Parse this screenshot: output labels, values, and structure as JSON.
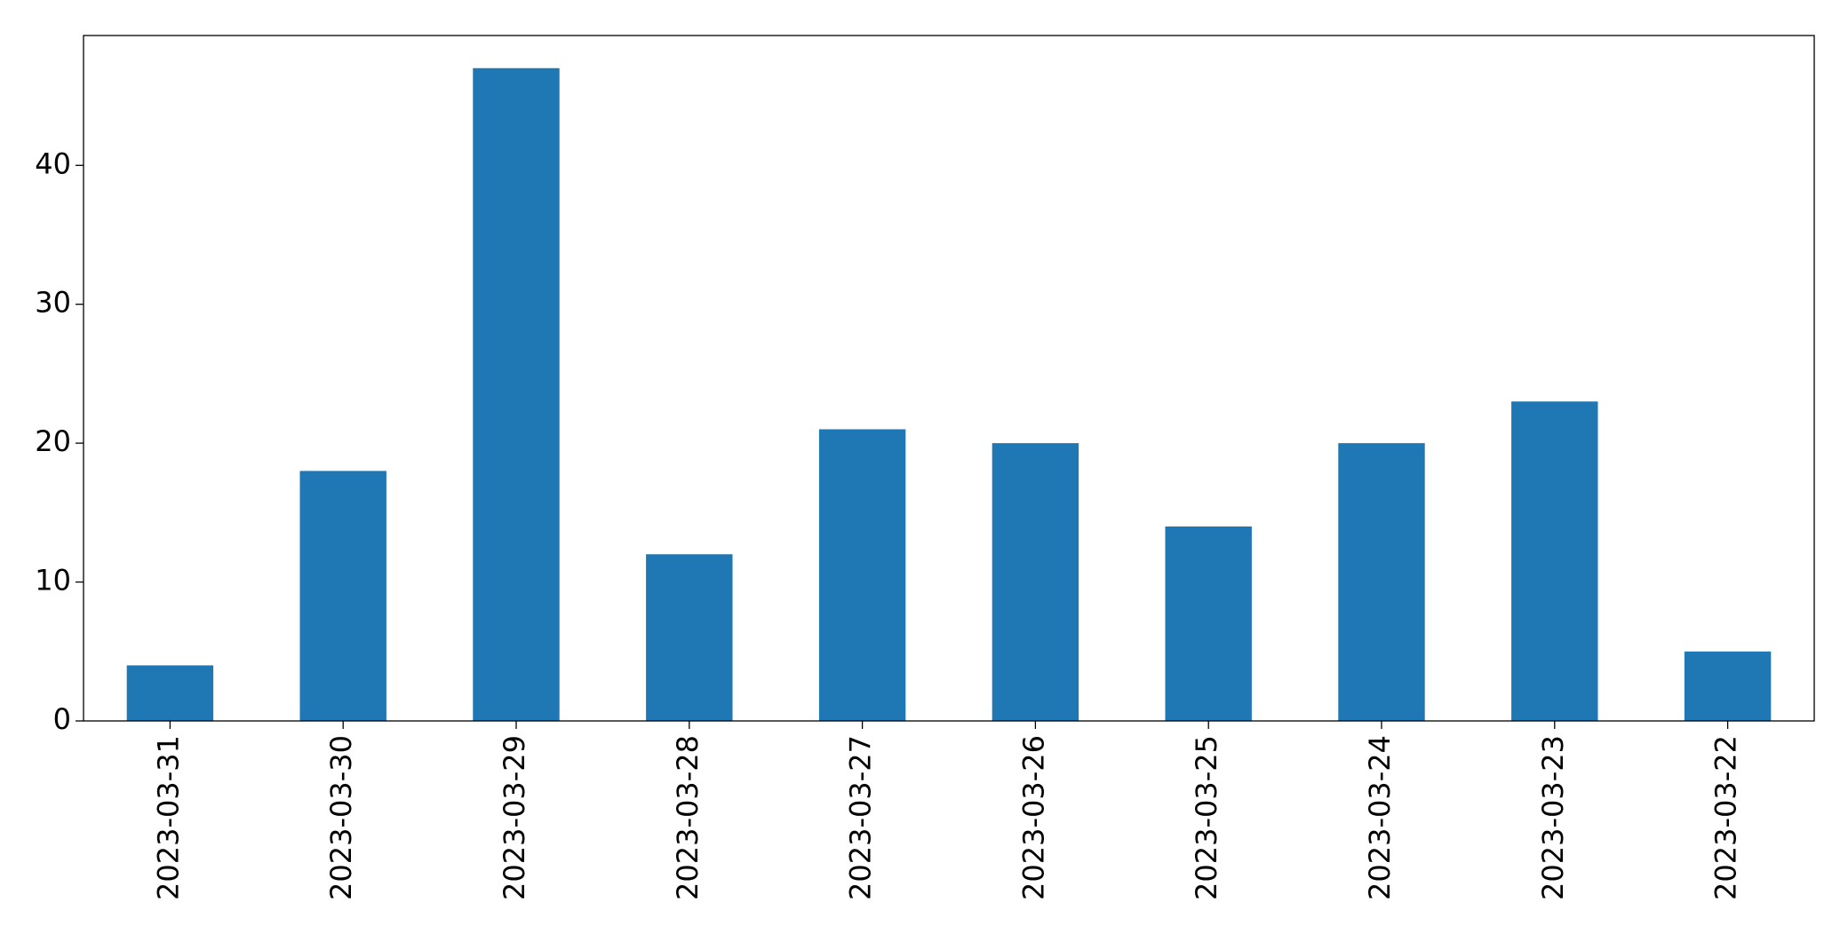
{
  "chart_data": {
    "type": "bar",
    "categories": [
      "2023-03-31",
      "2023-03-30",
      "2023-03-29",
      "2023-03-28",
      "2023-03-27",
      "2023-03-26",
      "2023-03-25",
      "2023-03-24",
      "2023-03-23",
      "2023-03-22"
    ],
    "values": [
      4,
      18,
      47,
      12,
      21,
      20,
      14,
      20,
      23,
      5
    ],
    "color": "#1f77b4",
    "ylim": [
      0,
      49.35
    ],
    "yticks": [
      0,
      10,
      20,
      30,
      40
    ],
    "grid": false
  }
}
